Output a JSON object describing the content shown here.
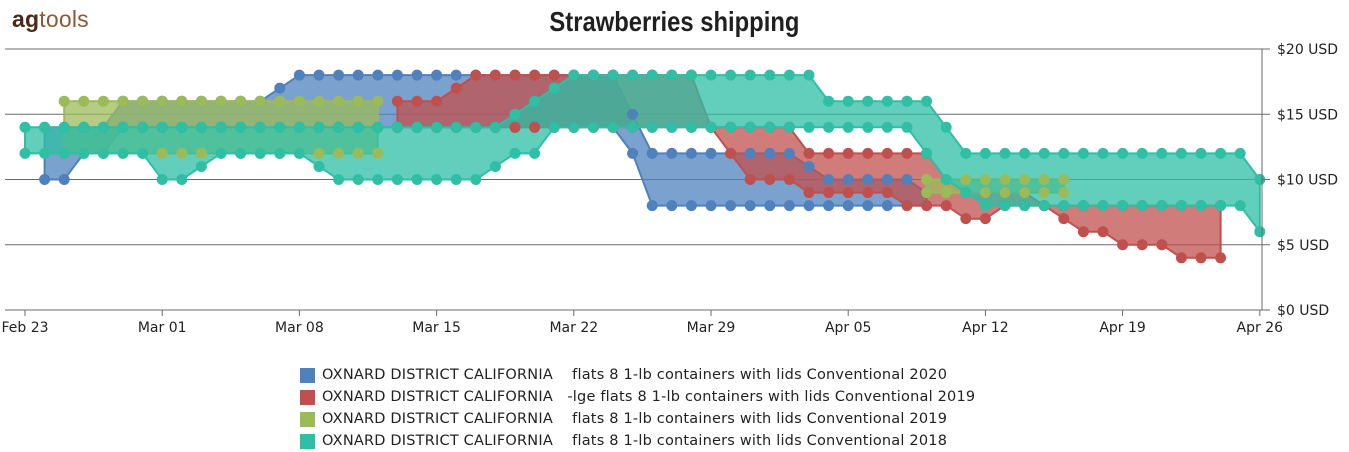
{
  "brand": {
    "part1": "ag",
    "part2": "tools"
  },
  "chart_data": {
    "type": "area",
    "title": "Strawberries shipping",
    "y_ticks": [
      "$0 USD",
      "$5 USD",
      "$10 USD",
      "$15 USD",
      "$20 USD"
    ],
    "y_tick_values": [
      0,
      5,
      10,
      15,
      20
    ],
    "ylim": [
      0,
      20
    ],
    "x_ticks": [
      {
        "label": "Feb 23",
        "day": 0
      },
      {
        "label": "Mar 01",
        "day": 7
      },
      {
        "label": "Mar 08",
        "day": 14
      },
      {
        "label": "Mar 15",
        "day": 21
      },
      {
        "label": "Mar 22",
        "day": 28
      },
      {
        "label": "Mar 29",
        "day": 35
      },
      {
        "label": "Apr 05",
        "day": 42
      },
      {
        "label": "Apr 12",
        "day": 49
      },
      {
        "label": "Apr 19",
        "day": 56
      },
      {
        "label": "Apr 26",
        "day": 63
      }
    ],
    "grid": true,
    "legend_position": "bottom",
    "series": [
      {
        "name": "OXNARD DISTRICT CALIFORNIA    flats 8 1-lb containers with lids Conventional 2020",
        "color": "#4f81bd",
        "points": [
          [
            1,
            10,
            14
          ],
          [
            2,
            10,
            14
          ],
          [
            3,
            12,
            14
          ],
          [
            4,
            12,
            14
          ],
          [
            5,
            14,
            16
          ],
          [
            6,
            14,
            16
          ],
          [
            7,
            14,
            16
          ],
          [
            8,
            14,
            16
          ],
          [
            9,
            14,
            16
          ],
          [
            10,
            14,
            16
          ],
          [
            11,
            14,
            16
          ],
          [
            12,
            14,
            16
          ],
          [
            13,
            14,
            17
          ],
          [
            14,
            14,
            18
          ],
          [
            15,
            14,
            18
          ],
          [
            16,
            14,
            18
          ],
          [
            17,
            14,
            18
          ],
          [
            18,
            14,
            18
          ],
          [
            19,
            14,
            18
          ],
          [
            20,
            14,
            18
          ],
          [
            21,
            14,
            18
          ],
          [
            22,
            14,
            18
          ],
          [
            23,
            14,
            18
          ],
          [
            24,
            14,
            18
          ],
          [
            25,
            14,
            18
          ],
          [
            26,
            14,
            18
          ],
          [
            27,
            14,
            18
          ],
          [
            28,
            14,
            18
          ],
          [
            29,
            14,
            18
          ],
          [
            30,
            14,
            18
          ],
          [
            31,
            12,
            15
          ],
          [
            32,
            8,
            12
          ],
          [
            33,
            8,
            12
          ],
          [
            34,
            8,
            12
          ],
          [
            35,
            8,
            12
          ],
          [
            36,
            8,
            12
          ],
          [
            37,
            8,
            12
          ],
          [
            38,
            8,
            12
          ],
          [
            39,
            8,
            12
          ],
          [
            40,
            8,
            11
          ],
          [
            41,
            8,
            10
          ],
          [
            42,
            8,
            10
          ],
          [
            43,
            8,
            10
          ],
          [
            44,
            8,
            10
          ],
          [
            45,
            8,
            10
          ],
          [
            46,
            8,
            9
          ]
        ]
      },
      {
        "name": "OXNARD DISTRICT CALIFORNIA   -lge flats 8 1-lb containers with lids Conventional 2019",
        "color": "#c0504d",
        "points": [
          [
            19,
            14,
            16
          ],
          [
            20,
            14,
            16
          ],
          [
            21,
            14,
            16
          ],
          [
            22,
            14,
            17
          ],
          [
            23,
            14,
            18
          ],
          [
            24,
            14,
            18
          ],
          [
            25,
            14,
            18
          ],
          [
            26,
            14,
            18
          ],
          [
            27,
            14,
            18
          ],
          [
            28,
            14,
            18
          ],
          [
            29,
            14,
            18
          ],
          [
            30,
            14,
            18
          ],
          [
            31,
            14,
            18
          ],
          [
            32,
            14,
            18
          ],
          [
            33,
            14,
            18
          ],
          [
            34,
            14,
            18
          ],
          [
            35,
            14,
            14
          ],
          [
            36,
            12,
            14
          ],
          [
            37,
            10,
            14
          ],
          [
            38,
            10,
            14
          ],
          [
            39,
            10,
            14
          ],
          [
            40,
            9,
            12
          ],
          [
            41,
            9,
            12
          ],
          [
            42,
            9,
            12
          ],
          [
            43,
            9,
            12
          ],
          [
            44,
            9,
            12
          ],
          [
            45,
            8,
            12
          ],
          [
            46,
            8,
            12
          ],
          [
            47,
            8,
            10
          ],
          [
            48,
            7,
            9
          ],
          [
            49,
            7,
            9
          ],
          [
            50,
            8,
            9
          ],
          [
            51,
            8,
            9
          ],
          [
            52,
            8,
            8
          ],
          [
            53,
            7,
            8
          ],
          [
            54,
            6,
            8
          ],
          [
            55,
            6,
            8
          ],
          [
            56,
            5,
            8
          ],
          [
            57,
            5,
            8
          ],
          [
            58,
            5,
            8
          ],
          [
            59,
            4,
            8
          ],
          [
            60,
            4,
            8
          ],
          [
            61,
            4,
            8
          ]
        ]
      },
      {
        "name": "OXNARD DISTRICT CALIFORNIA    flats 8 1-lb containers with lids Conventional 2019",
        "color": "#9bbb59",
        "points": [
          [
            2,
            12,
            16
          ],
          [
            3,
            12,
            16
          ],
          [
            4,
            12,
            16
          ],
          [
            5,
            12,
            16
          ],
          [
            6,
            12,
            16
          ],
          [
            7,
            12,
            16
          ],
          [
            8,
            12,
            16
          ],
          [
            9,
            12,
            16
          ],
          [
            10,
            12,
            16
          ],
          [
            11,
            12,
            16
          ],
          [
            12,
            12,
            16
          ],
          [
            13,
            12,
            16
          ],
          [
            14,
            12,
            16
          ],
          [
            15,
            12,
            16
          ],
          [
            16,
            12,
            16
          ],
          [
            17,
            12,
            16
          ],
          [
            18,
            12,
            16
          ],
          [
            46,
            9,
            10
          ],
          [
            47,
            9,
            10
          ],
          [
            48,
            9,
            10
          ],
          [
            49,
            9,
            10
          ],
          [
            50,
            9,
            10
          ],
          [
            51,
            9,
            10
          ],
          [
            52,
            9,
            10
          ],
          [
            53,
            9,
            10
          ]
        ]
      },
      {
        "name": "OXNARD DISTRICT CALIFORNIA    flats 8 1-lb containers with lids Conventional 2018",
        "color": "#2ebfa5",
        "points": [
          [
            0,
            12,
            14
          ],
          [
            1,
            12,
            14
          ],
          [
            2,
            12,
            14
          ],
          [
            3,
            12,
            14
          ],
          [
            4,
            12,
            14
          ],
          [
            5,
            12,
            14
          ],
          [
            6,
            12,
            14
          ],
          [
            7,
            10,
            14
          ],
          [
            8,
            10,
            14
          ],
          [
            9,
            11,
            14
          ],
          [
            10,
            12,
            14
          ],
          [
            11,
            12,
            14
          ],
          [
            12,
            12,
            14
          ],
          [
            13,
            12,
            14
          ],
          [
            14,
            12,
            14
          ],
          [
            15,
            11,
            14
          ],
          [
            16,
            10,
            14
          ],
          [
            17,
            10,
            14
          ],
          [
            18,
            10,
            14
          ],
          [
            19,
            10,
            14
          ],
          [
            20,
            10,
            14
          ],
          [
            21,
            10,
            14
          ],
          [
            22,
            10,
            14
          ],
          [
            23,
            10,
            14
          ],
          [
            24,
            11,
            14
          ],
          [
            25,
            12,
            15
          ],
          [
            26,
            12,
            16
          ],
          [
            27,
            14,
            17
          ],
          [
            28,
            14,
            18
          ],
          [
            29,
            14,
            18
          ],
          [
            30,
            14,
            18
          ],
          [
            31,
            14,
            18
          ],
          [
            32,
            14,
            18
          ],
          [
            33,
            14,
            18
          ],
          [
            34,
            14,
            18
          ],
          [
            35,
            14,
            18
          ],
          [
            36,
            14,
            18
          ],
          [
            37,
            14,
            18
          ],
          [
            38,
            14,
            18
          ],
          [
            39,
            14,
            18
          ],
          [
            40,
            14,
            18
          ],
          [
            41,
            14,
            16
          ],
          [
            42,
            14,
            16
          ],
          [
            43,
            14,
            16
          ],
          [
            44,
            14,
            16
          ],
          [
            45,
            14,
            16
          ],
          [
            46,
            12,
            16
          ],
          [
            47,
            10,
            14
          ],
          [
            48,
            9,
            12
          ],
          [
            49,
            8,
            12
          ],
          [
            50,
            8,
            12
          ],
          [
            51,
            8,
            12
          ],
          [
            52,
            8,
            12
          ],
          [
            53,
            8,
            12
          ],
          [
            54,
            8,
            12
          ],
          [
            55,
            8,
            12
          ],
          [
            56,
            8,
            12
          ],
          [
            57,
            8,
            12
          ],
          [
            58,
            8,
            12
          ],
          [
            59,
            8,
            12
          ],
          [
            60,
            8,
            12
          ],
          [
            61,
            8,
            12
          ],
          [
            62,
            8,
            12
          ],
          [
            63,
            6,
            10
          ]
        ]
      }
    ]
  }
}
